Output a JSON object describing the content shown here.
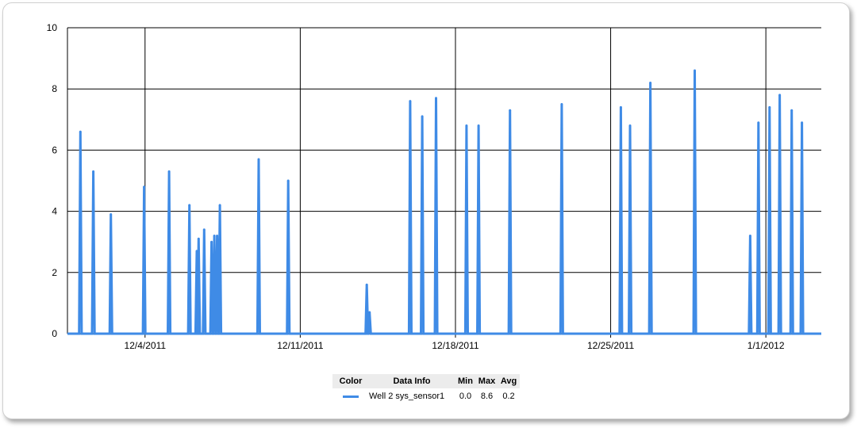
{
  "chart_data": {
    "type": "line",
    "title": "",
    "xlabel": "",
    "ylabel": "",
    "x_axis_type": "date",
    "xlim": [
      "2011-11-30T12:00",
      "2012-01-03T12:00"
    ],
    "ylim": [
      0,
      10
    ],
    "y_ticks": [
      0,
      2,
      4,
      6,
      8,
      10
    ],
    "x_ticks": [
      {
        "date": "2011-12-04",
        "label": "12/4/2011"
      },
      {
        "date": "2011-12-11",
        "label": "12/11/2011"
      },
      {
        "date": "2011-12-18",
        "label": "12/18/2011"
      },
      {
        "date": "2011-12-25",
        "label": "12/25/2011"
      },
      {
        "date": "2012-01-01",
        "label": "1/1/2012"
      }
    ],
    "grid": true,
    "legend_position": "bottom",
    "series": [
      {
        "name": "Well 2 sys_sensor1",
        "color": "#3f8be6",
        "spikes": [
          [
            "2011-12-01T02:00",
            6.6
          ],
          [
            "2011-12-01T16:00",
            5.3
          ],
          [
            "2011-12-02T11:00",
            3.9
          ],
          [
            "2011-12-03T23:00",
            4.8
          ],
          [
            "2011-12-05T02:00",
            5.3
          ],
          [
            "2011-12-06T00:00",
            4.2
          ],
          [
            "2011-12-06T08:00",
            2.7
          ],
          [
            "2011-12-06T10:00",
            3.1
          ],
          [
            "2011-12-06T16:00",
            3.4
          ],
          [
            "2011-12-07T00:00",
            3.0
          ],
          [
            "2011-12-07T03:00",
            3.2
          ],
          [
            "2011-12-07T06:00",
            3.2
          ],
          [
            "2011-12-07T09:00",
            4.2
          ],
          [
            "2011-12-09T03:00",
            5.7
          ],
          [
            "2011-12-10T11:00",
            5.0
          ],
          [
            "2011-12-14T00:00",
            1.6
          ],
          [
            "2011-12-14T03:00",
            0.7
          ],
          [
            "2011-12-15T23:00",
            7.6
          ],
          [
            "2011-12-16T12:00",
            7.1
          ],
          [
            "2011-12-17T03:00",
            7.7
          ],
          [
            "2011-12-18T12:00",
            6.8
          ],
          [
            "2011-12-19T01:00",
            6.8
          ],
          [
            "2011-12-20T11:00",
            7.3
          ],
          [
            "2011-12-22T19:00",
            7.5
          ],
          [
            "2011-12-25T11:00",
            7.4
          ],
          [
            "2011-12-25T21:00",
            6.8
          ],
          [
            "2011-12-26T19:00",
            8.2
          ],
          [
            "2011-12-28T19:00",
            8.6
          ],
          [
            "2011-12-31T07:00",
            3.2
          ],
          [
            "2011-12-31T16:00",
            6.9
          ],
          [
            "2012-01-01T04:00",
            7.4
          ],
          [
            "2012-01-01T15:00",
            7.8
          ],
          [
            "2012-01-02T04:00",
            7.3
          ],
          [
            "2012-01-02T15:00",
            6.9
          ]
        ]
      }
    ]
  },
  "legend": {
    "headers": {
      "color": "Color",
      "info": "Data Info",
      "min": "Min",
      "max": "Max",
      "avg": "Avg"
    },
    "rows": [
      {
        "info": "Well 2 sys_sensor1",
        "min": "0.0",
        "max": "8.6",
        "avg": "0.2",
        "color": "#3f8be6"
      }
    ]
  }
}
